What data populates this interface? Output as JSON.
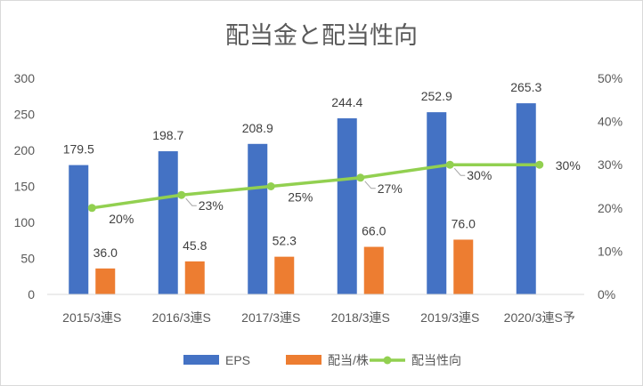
{
  "chart_data": {
    "type": "bar",
    "title": "配当金と配当性向",
    "categories": [
      "2015/3連S",
      "2016/3連S",
      "2017/3連S",
      "2018/3連S",
      "2019/3連S",
      "2020/3連S予"
    ],
    "series": [
      {
        "name": "EPS",
        "type": "bar",
        "axis": "left",
        "color": "#4472c4",
        "values": [
          179.5,
          198.7,
          208.9,
          244.4,
          252.9,
          265.3
        ],
        "labels": [
          "179.5",
          "198.7",
          "208.9",
          "244.4",
          "252.9",
          "265.3"
        ]
      },
      {
        "name": "配当/株",
        "type": "bar",
        "axis": "left",
        "color": "#ed7d31",
        "values": [
          36.0,
          45.8,
          52.3,
          66.0,
          76.0,
          null
        ],
        "labels": [
          "36.0",
          "45.8",
          "52.3",
          "66.0",
          "76.0",
          null
        ]
      },
      {
        "name": "配当性向",
        "type": "line",
        "axis": "right",
        "color": "#92d050",
        "values": [
          20,
          23,
          25,
          27,
          30,
          30
        ],
        "labels": [
          "20%",
          "23%",
          "25%",
          "27%",
          "30%",
          "30%"
        ]
      }
    ],
    "y_left": {
      "ylim": [
        0,
        300
      ],
      "ticks": [
        "0",
        "50",
        "100",
        "150",
        "200",
        "250",
        "300"
      ]
    },
    "y_right": {
      "ylim": [
        0,
        50
      ],
      "unit": "%",
      "ticks": [
        "0%",
        "10%",
        "20%",
        "30%",
        "40%",
        "50%"
      ]
    },
    "grid": false,
    "legend": "bottom"
  }
}
